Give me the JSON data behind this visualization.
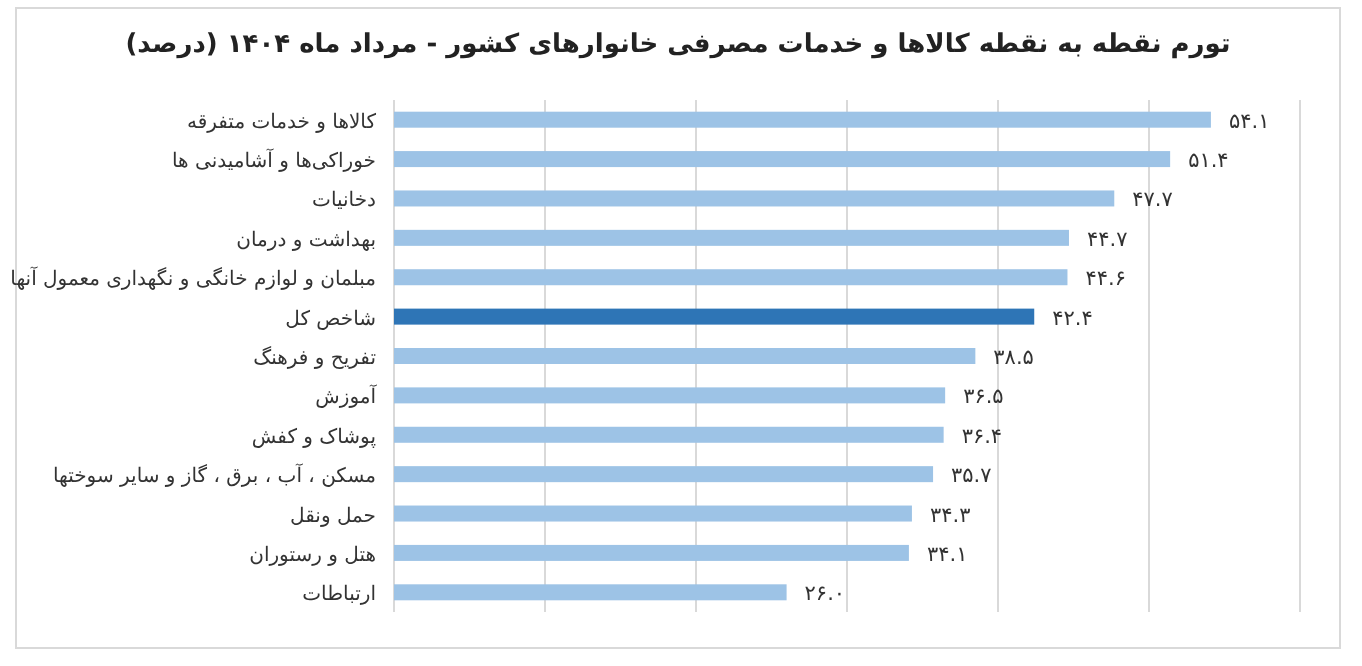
{
  "chart_data": {
    "type": "bar",
    "orientation": "horizontal",
    "title": "تورم نقطه به نقطه کالاها و خدمات مصرفی خانوارهای کشور - مرداد ماه ۱۴۰۴ (درصد)",
    "categories": [
      "کالاها و خدمات متفرقه",
      "خوراکی‌ها و آشامیدنی ها",
      "دخانیات",
      "بهداشت و درمان",
      "مبلمان و لوازم خانگی و نگهداری معمول آنها",
      "شاخص کل",
      "تفریح و فرهنگ",
      "آموزش",
      "پوشاک و کفش",
      "مسکن ، آب ، برق ، گاز و سایر سوختها",
      "حمل ونقل",
      "هتل و رستوران",
      "ارتباطات"
    ],
    "values": [
      54.1,
      51.4,
      47.7,
      44.7,
      44.6,
      42.4,
      38.5,
      36.5,
      36.4,
      35.7,
      34.3,
      34.1,
      26.0
    ],
    "value_labels": [
      "۵۴.۱",
      "۵۱.۴",
      "۴۷.۷",
      "۴۴.۷",
      "۴۴.۶",
      "۴۲.۴",
      "۳۸.۵",
      "۳۶.۵",
      "۳۶.۴",
      "۳۵.۷",
      "۳۴.۳",
      "۳۴.۱",
      "۲۶.۰"
    ],
    "colors": [
      "#9dc3e6",
      "#9dc3e6",
      "#9dc3e6",
      "#9dc3e6",
      "#9dc3e6",
      "#2e75b6",
      "#9dc3e6",
      "#9dc3e6",
      "#9dc3e6",
      "#9dc3e6",
      "#9dc3e6",
      "#9dc3e6",
      "#9dc3e6"
    ],
    "xlim": [
      0,
      60
    ],
    "xticks": [
      {
        "value": 0,
        "label": null
      },
      {
        "value": 10,
        "label": null
      },
      {
        "value": 20,
        "label": null
      },
      {
        "value": 30,
        "label": null
      },
      {
        "value": 40,
        "label": null
      },
      {
        "value": 50,
        "label": null
      },
      {
        "value": 60,
        "label": null
      }
    ],
    "grid": "x",
    "tick_labels": "y"
  }
}
